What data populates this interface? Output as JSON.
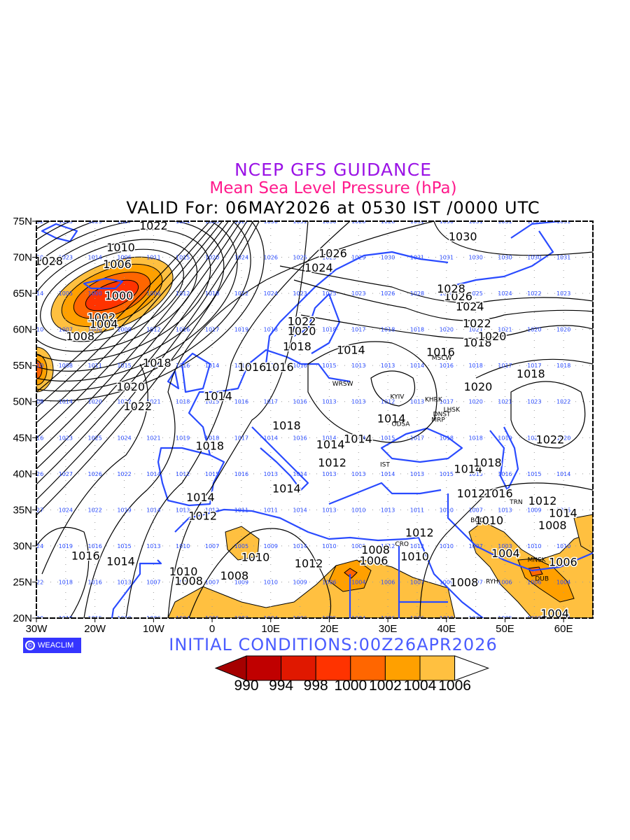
{
  "title": {
    "line1": "NCEP GFS GUIDANCE",
    "line2": "Mean Sea Level Pressure (hPa)",
    "line3": "VALID For: 06MAY2026 at 0530 IST /0000 UTC"
  },
  "initial_conditions": "INITIAL  CONDITIONS:00Z26APR2026",
  "logo": {
    "symbol": "©",
    "text": "WEACLIM"
  },
  "axes": {
    "x_ticks": [
      "30W",
      "20W",
      "10W",
      "0",
      "10E",
      "20E",
      "30E",
      "40E",
      "50E",
      "60E"
    ],
    "x_tick_lons": [
      -30,
      -20,
      -10,
      0,
      10,
      20,
      30,
      40,
      50,
      60
    ],
    "y_ticks": [
      "20N",
      "25N",
      "30N",
      "35N",
      "40N",
      "45N",
      "50N",
      "55N",
      "60N",
      "65N",
      "70N",
      "75N"
    ],
    "y_tick_lats": [
      20,
      25,
      30,
      35,
      40,
      45,
      50,
      55,
      60,
      65,
      70,
      75
    ],
    "lon_range": [
      -30,
      65
    ],
    "lat_range": [
      20,
      75
    ]
  },
  "colorbar": {
    "labels": [
      "990",
      "994",
      "998",
      "1000",
      "1002",
      "1004",
      "1006"
    ],
    "colors": [
      "#a50000",
      "#c00000",
      "#e01800",
      "#ff3300",
      "#ff6600",
      "#ffa000",
      "#ffc040",
      "#ffffff"
    ]
  },
  "colors": {
    "coast": "#2a4bff",
    "grid_label": "#2a4bff",
    "contour": "#000000"
  },
  "grid_values": {
    "lons": [
      -30,
      -25,
      -20,
      -15,
      -10,
      -5,
      0,
      5,
      10,
      15,
      20,
      25,
      30,
      35,
      40,
      45,
      50,
      55,
      60
    ],
    "rows": [
      {
        "lat": 75,
        "values": [
          "1032",
          "1033",
          "1029",
          "1027",
          "1024",
          "1024",
          "1025",
          "1027",
          "1030",
          "1031",
          "1030",
          "1028",
          "1028",
          "1031",
          "1030",
          "1031",
          "1031",
          "1031",
          "1031"
        ]
      },
      {
        "lat": 70,
        "values": [
          "1030",
          "1023",
          "1014",
          "1006",
          "1011",
          "1015",
          "1020",
          "1024",
          "1026",
          "1025",
          "1025",
          "1029",
          "1030",
          "1031",
          "1031",
          "1030",
          "1030",
          "1030",
          "1031"
        ]
      },
      {
        "lat": 65,
        "values": [
          "1014",
          "1005",
          "1000",
          "1000",
          "1006",
          "1012",
          "1018",
          "1022",
          "1024",
          "1023",
          "1025",
          "1023",
          "1026",
          "1028",
          "1028",
          "1025",
          "1024",
          "1022",
          "1023"
        ]
      },
      {
        "lat": 60,
        "values": [
          "1010",
          "1007",
          "1006",
          "1008",
          "1012",
          "1016",
          "1017",
          "1019",
          "1018",
          "1018",
          "1018",
          "1017",
          "1018",
          "1018",
          "1020",
          "1021",
          "1021",
          "1020",
          "1020"
        ]
      },
      {
        "lat": 55,
        "values": [
          "1010",
          "1008",
          "1011",
          "1015",
          "1016",
          "1016",
          "1014",
          "1016",
          "1015",
          "1016",
          "1015",
          "1013",
          "1013",
          "1014",
          "1016",
          "1018",
          "1017",
          "1017",
          "1018"
        ]
      },
      {
        "lat": 50,
        "values": [
          "1008",
          "1014",
          "1020",
          "1022",
          "1021",
          "1018",
          "1015",
          "1016",
          "1017",
          "1016",
          "1013",
          "1013",
          "1012",
          "1013",
          "1017",
          "1020",
          "1021",
          "1023",
          "1022"
        ]
      },
      {
        "lat": 45,
        "values": [
          "1016",
          "1023",
          "1025",
          "1024",
          "1021",
          "1019",
          "1018",
          "1017",
          "1014",
          "1016",
          "1014",
          "1014",
          "1015",
          "1017",
          "1018",
          "1018",
          "1019",
          "1022",
          "1020"
        ]
      },
      {
        "lat": 40,
        "values": [
          "1026",
          "1027",
          "1026",
          "1022",
          "1014",
          "1012",
          "1015",
          "1016",
          "1013",
          "1014",
          "1013",
          "1013",
          "1014",
          "1013",
          "1015",
          "1015",
          "1016",
          "1015",
          "1014"
        ]
      },
      {
        "lat": 35,
        "values": [
          "1027",
          "1024",
          "1022",
          "1019",
          "1014",
          "1013",
          "1012",
          "1011",
          "1011",
          "1014",
          "1013",
          "1010",
          "1013",
          "1011",
          "1010",
          "1007",
          "1013",
          "1009",
          "1015"
        ]
      },
      {
        "lat": 30,
        "values": [
          "1024",
          "1019",
          "1016",
          "1015",
          "1013",
          "1010",
          "1007",
          "1005",
          "1009",
          "1014",
          "1010",
          "1009",
          "1012",
          "1012",
          "1010",
          "1007",
          "1003",
          "1010",
          "1010"
        ]
      },
      {
        "lat": 25,
        "values": [
          "1022",
          "1018",
          "1016",
          "1013",
          "1007",
          "1007",
          "1007",
          "1009",
          "1010",
          "1009",
          "1006",
          "1004",
          "1006",
          "1007",
          "1009",
          "1007",
          "1006",
          "1006",
          "1004"
        ]
      },
      {
        "lat": 20,
        "values": [
          "1020",
          "1019",
          "1015",
          "1010",
          "1006",
          "1004",
          "1005",
          "1003",
          "1004",
          "1006",
          "1005",
          "1004",
          "1006",
          "1006",
          "1010",
          "1008",
          "1005",
          "1008",
          "1004"
        ]
      }
    ]
  },
  "contour_labels": [
    {
      "text": "1022",
      "lon": -10,
      "lat": 74.4
    },
    {
      "text": "1010",
      "lon": -15.6,
      "lat": 71.4
    },
    {
      "text": "1006",
      "lon": -16.2,
      "lat": 69.1
    },
    {
      "text": "1028",
      "lon": -27.9,
      "lat": 69.5
    },
    {
      "text": "1000",
      "lon": -15.9,
      "lat": 64.7
    },
    {
      "text": "1002",
      "lon": -18.9,
      "lat": 61.7
    },
    {
      "text": "1004",
      "lon": -18.5,
      "lat": 60.8
    },
    {
      "text": "1008",
      "lon": -22.5,
      "lat": 59.1
    },
    {
      "text": "1018",
      "lon": -9.4,
      "lat": 55.4
    },
    {
      "text": "1020",
      "lon": -13.9,
      "lat": 52.1
    },
    {
      "text": "1022",
      "lon": -12.7,
      "lat": 49.4
    },
    {
      "text": "1014",
      "lon": 1.0,
      "lat": 50.8
    },
    {
      "text": "1016",
      "lon": 6.8,
      "lat": 54.8
    },
    {
      "text": "1016",
      "lon": 11.5,
      "lat": 54.8
    },
    {
      "text": "1018",
      "lon": 12.7,
      "lat": 46.7
    },
    {
      "text": "1018",
      "lon": -0.4,
      "lat": 43.9
    },
    {
      "text": "1014",
      "lon": 20.2,
      "lat": 44.1
    },
    {
      "text": "1014",
      "lon": 24.9,
      "lat": 44.9
    },
    {
      "text": "1012",
      "lon": 20.5,
      "lat": 41.6
    },
    {
      "text": "1014",
      "lon": 12.7,
      "lat": 38.0
    },
    {
      "text": "1014",
      "lon": -2.0,
      "lat": 36.8
    },
    {
      "text": "1012",
      "lon": -1.6,
      "lat": 34.2
    },
    {
      "text": "1016",
      "lon": -21.6,
      "lat": 28.7
    },
    {
      "text": "1014",
      "lon": -15.6,
      "lat": 27.9
    },
    {
      "text": "1010",
      "lon": -4.9,
      "lat": 26.5
    },
    {
      "text": "1008",
      "lon": -4.0,
      "lat": 25.2
    },
    {
      "text": "1010",
      "lon": 7.4,
      "lat": 28.5
    },
    {
      "text": "1008",
      "lon": 3.8,
      "lat": 25.9
    },
    {
      "text": "1012",
      "lon": 16.5,
      "lat": 27.6
    },
    {
      "text": "1008",
      "lon": 27.9,
      "lat": 29.5
    },
    {
      "text": "1006",
      "lon": 27.6,
      "lat": 28.0
    },
    {
      "text": "1010",
      "lon": 34.6,
      "lat": 28.6
    },
    {
      "text": "1012",
      "lon": 35.4,
      "lat": 31.9
    },
    {
      "text": "1008",
      "lon": 43.0,
      "lat": 25.0
    },
    {
      "text": "1004",
      "lon": 50.1,
      "lat": 29.0
    },
    {
      "text": "1006",
      "lon": 59.9,
      "lat": 27.8
    },
    {
      "text": "1004",
      "lon": 58.5,
      "lat": 20.7
    },
    {
      "text": "1012",
      "lon": 44.2,
      "lat": 37.3
    },
    {
      "text": "1016",
      "lon": 48.9,
      "lat": 37.3
    },
    {
      "text": "1012",
      "lon": 56.4,
      "lat": 36.3
    },
    {
      "text": "1014",
      "lon": 59.9,
      "lat": 34.6
    },
    {
      "text": "1008",
      "lon": 58.1,
      "lat": 32.9
    },
    {
      "text": "1010",
      "lon": 47.3,
      "lat": 33.6
    },
    {
      "text": "1014",
      "lon": 43.7,
      "lat": 40.7
    },
    {
      "text": "1018",
      "lon": 47.0,
      "lat": 41.6
    },
    {
      "text": "1022",
      "lon": 57.7,
      "lat": 44.8
    },
    {
      "text": "1014",
      "lon": 30.6,
      "lat": 47.7
    },
    {
      "text": "1020",
      "lon": 45.4,
      "lat": 52.1
    },
    {
      "text": "1018",
      "lon": 54.4,
      "lat": 53.9
    },
    {
      "text": "1016",
      "lon": 39.0,
      "lat": 56.9
    },
    {
      "text": "1018",
      "lon": 45.3,
      "lat": 58.2
    },
    {
      "text": "1020",
      "lon": 47.8,
      "lat": 59.1
    },
    {
      "text": "1022",
      "lon": 45.2,
      "lat": 60.9
    },
    {
      "text": "1024",
      "lon": 44.0,
      "lat": 63.2
    },
    {
      "text": "1026",
      "lon": 42.0,
      "lat": 64.6
    },
    {
      "text": "1028",
      "lon": 40.8,
      "lat": 65.7
    },
    {
      "text": "1030",
      "lon": 42.8,
      "lat": 72.9
    },
    {
      "text": "1026",
      "lon": 20.6,
      "lat": 70.6
    },
    {
      "text": "1024",
      "lon": 18.2,
      "lat": 68.6
    },
    {
      "text": "1022",
      "lon": 15.3,
      "lat": 61.2
    },
    {
      "text": "1020",
      "lon": 15.3,
      "lat": 59.8
    },
    {
      "text": "1018",
      "lon": 14.5,
      "lat": 57.7
    },
    {
      "text": "1014",
      "lon": 23.7,
      "lat": 57.2
    }
  ],
  "cities": [
    {
      "name": "WRSW",
      "lon": 22.3,
      "lat": 52.5
    },
    {
      "name": "KYIV",
      "lon": 31.6,
      "lat": 50.7
    },
    {
      "name": "KHRK",
      "lon": 37.8,
      "lat": 50.3
    },
    {
      "name": "MSCW",
      "lon": 39.2,
      "lat": 56.1
    },
    {
      "name": "ODSA",
      "lon": 32.2,
      "lat": 46.9
    },
    {
      "name": "DNST",
      "lon": 39.2,
      "lat": 48.3
    },
    {
      "name": "MRP",
      "lon": 38.6,
      "lat": 47.5
    },
    {
      "name": "LHSK",
      "lon": 40.9,
      "lat": 48.9
    },
    {
      "name": "IST",
      "lon": 29.5,
      "lat": 41.3
    },
    {
      "name": "CRO",
      "lon": 32.4,
      "lat": 30.3
    },
    {
      "name": "TRN",
      "lon": 51.9,
      "lat": 36.1
    },
    {
      "name": "BGD",
      "lon": 45.3,
      "lat": 33.6
    },
    {
      "name": "MNSK",
      "lon": 55.4,
      "lat": 28.1
    },
    {
      "name": "DUB",
      "lon": 56.3,
      "lat": 25.5
    },
    {
      "name": "RYH",
      "lon": 47.8,
      "lat": 25.1
    }
  ]
}
